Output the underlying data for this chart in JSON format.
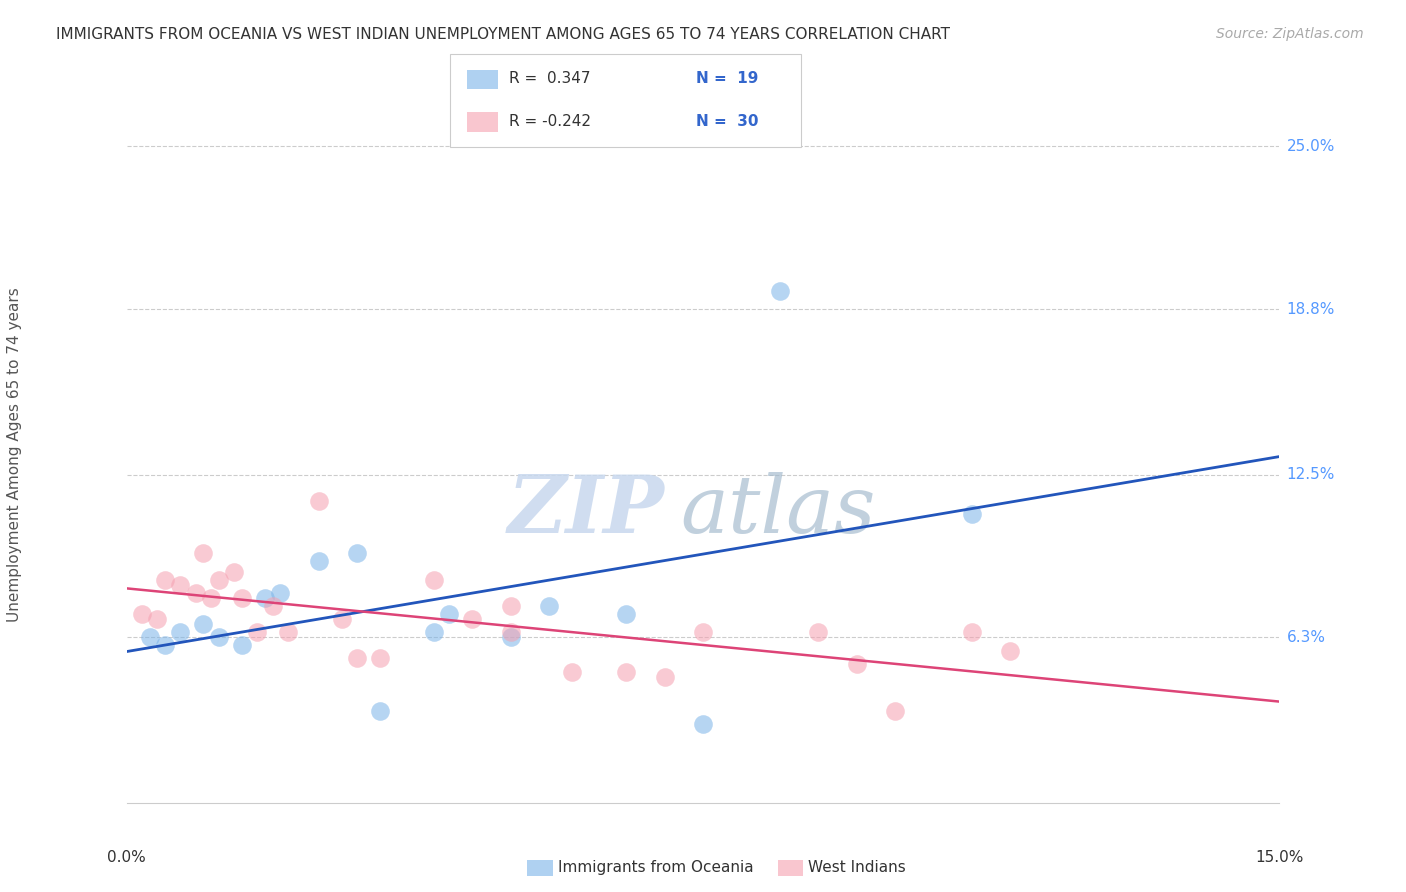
{
  "title": "IMMIGRANTS FROM OCEANIA VS WEST INDIAN UNEMPLOYMENT AMONG AGES 65 TO 74 YEARS CORRELATION CHART",
  "source": "Source: ZipAtlas.com",
  "ylabel": "Unemployment Among Ages 65 to 74 years",
  "xmin": 0.0,
  "xmax": 15.0,
  "ymin": 0.0,
  "ymax": 26.5,
  "ytick_vals": [
    6.3,
    12.5,
    18.8,
    25.0
  ],
  "ytick_labels": [
    "6.3%",
    "12.5%",
    "18.8%",
    "25.0%"
  ],
  "watermark_zip": "ZIP",
  "watermark_atlas": "atlas",
  "oceania_points": [
    [
      0.3,
      6.3
    ],
    [
      0.5,
      6.0
    ],
    [
      0.7,
      6.5
    ],
    [
      1.0,
      6.8
    ],
    [
      1.2,
      6.3
    ],
    [
      1.5,
      6.0
    ],
    [
      1.8,
      7.8
    ],
    [
      2.0,
      8.0
    ],
    [
      2.5,
      9.2
    ],
    [
      3.0,
      9.5
    ],
    [
      3.3,
      3.5
    ],
    [
      4.0,
      6.5
    ],
    [
      4.2,
      7.2
    ],
    [
      5.0,
      6.3
    ],
    [
      5.5,
      7.5
    ],
    [
      6.5,
      7.2
    ],
    [
      7.5,
      3.0
    ],
    [
      8.5,
      19.5
    ],
    [
      11.0,
      11.0
    ]
  ],
  "westindian_points": [
    [
      0.2,
      7.2
    ],
    [
      0.4,
      7.0
    ],
    [
      0.5,
      8.5
    ],
    [
      0.7,
      8.3
    ],
    [
      0.9,
      8.0
    ],
    [
      1.0,
      9.5
    ],
    [
      1.1,
      7.8
    ],
    [
      1.2,
      8.5
    ],
    [
      1.4,
      8.8
    ],
    [
      1.5,
      7.8
    ],
    [
      1.7,
      6.5
    ],
    [
      1.9,
      7.5
    ],
    [
      2.1,
      6.5
    ],
    [
      2.5,
      11.5
    ],
    [
      2.8,
      7.0
    ],
    [
      3.0,
      5.5
    ],
    [
      3.3,
      5.5
    ],
    [
      4.0,
      8.5
    ],
    [
      4.5,
      7.0
    ],
    [
      5.0,
      6.5
    ],
    [
      5.0,
      7.5
    ],
    [
      5.8,
      5.0
    ],
    [
      6.5,
      5.0
    ],
    [
      7.0,
      4.8
    ],
    [
      7.5,
      6.5
    ],
    [
      9.0,
      6.5
    ],
    [
      9.5,
      5.3
    ],
    [
      10.0,
      3.5
    ],
    [
      11.0,
      6.5
    ],
    [
      11.5,
      5.8
    ]
  ],
  "oceania_color": "#7ab3e8",
  "westindian_color": "#f5a0b0",
  "oceania_line_color": "#2255bb",
  "westindian_line_color": "#dd4477",
  "background_color": "#ffffff",
  "grid_color": "#cccccc",
  "title_color": "#333333",
  "source_color": "#aaaaaa",
  "ylabel_color": "#555555",
  "ytick_color": "#5599ff",
  "xtick_color": "#333333",
  "legend_r_color": "#333333",
  "legend_n_color": "#3366cc"
}
